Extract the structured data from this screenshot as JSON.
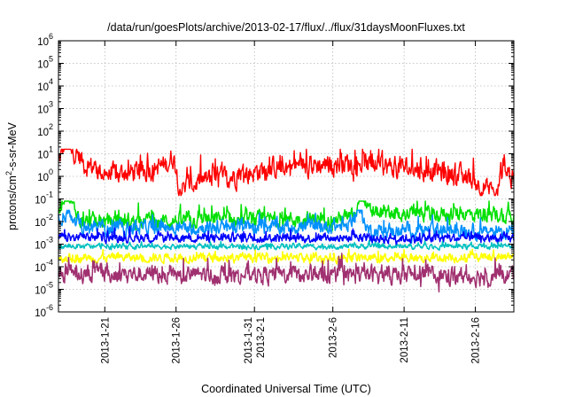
{
  "chart_data": {
    "type": "line",
    "title": "/data/run/goesPlots/archive/2013-02-17/flux/../flux/31daysMoonFluxes.txt",
    "xlabel": "Coordinated Universal Time (UTC)",
    "ylabel": "protons/cm²-s-sr-MeV",
    "yscale": "log",
    "ylim_exp": [
      -6,
      6
    ],
    "y_ticks": [
      {
        "base": "10",
        "exp": "-6"
      },
      {
        "base": "10",
        "exp": "-5"
      },
      {
        "base": "10",
        "exp": "-4"
      },
      {
        "base": "10",
        "exp": "-3"
      },
      {
        "base": "10",
        "exp": "-2"
      },
      {
        "base": "10",
        "exp": "-1"
      },
      {
        "base": "10",
        "exp": "0"
      },
      {
        "base": "10",
        "exp": "1"
      },
      {
        "base": "10",
        "exp": "2"
      },
      {
        "base": "10",
        "exp": "3"
      },
      {
        "base": "10",
        "exp": "4"
      },
      {
        "base": "10",
        "exp": "5"
      },
      {
        "base": "10",
        "exp": "6"
      }
    ],
    "xlim_days": [
      17.75,
      49.7
    ],
    "x_ticks": [
      {
        "lines": [
          "2013-1-21"
        ],
        "day": 21
      },
      {
        "lines": [
          "2013-1-26"
        ],
        "day": 26
      },
      {
        "lines": [
          "2013-1-31",
          "2013-2-1"
        ],
        "day": 31.5
      },
      {
        "lines": [
          "2013-2-6"
        ],
        "day": 37
      },
      {
        "lines": [
          "2013-2-11"
        ],
        "day": 42
      },
      {
        "lines": [
          "2013-2-16"
        ],
        "day": 47
      }
    ],
    "grid": true,
    "colors": {
      "red": "#ff0000",
      "green": "#00e000",
      "blue": "#0000ff",
      "lightblue": "#0090ff",
      "cyan": "#00c0c0",
      "yellow": "#ffff00",
      "purple": "#a03070"
    },
    "series": [
      {
        "color": "red",
        "log_min": -0.7,
        "log_max": 1.0,
        "log_mid": 0.3,
        "key_points": [
          [
            17.8,
            0.7
          ],
          [
            18.3,
            1.6
          ],
          [
            18.8,
            1.2
          ],
          [
            19.5,
            0.6
          ],
          [
            21.5,
            0.0
          ],
          [
            24.0,
            0.3
          ],
          [
            25.3,
            0.5
          ],
          [
            25.8,
            0.9
          ],
          [
            26.3,
            -0.5
          ],
          [
            28.0,
            -0.2
          ],
          [
            33.0,
            0.4
          ],
          [
            36.0,
            0.5
          ],
          [
            38.5,
            0.6
          ],
          [
            41.0,
            0.4
          ],
          [
            44.0,
            0.3
          ],
          [
            47.0,
            -0.2
          ],
          [
            48.5,
            -0.9
          ],
          [
            49.0,
            0.6
          ],
          [
            49.7,
            -0.3
          ]
        ]
      },
      {
        "color": "green",
        "log_min": -2.5,
        "log_max": -1.3,
        "log_mid": -2.0,
        "key_points": [
          [
            17.8,
            -1.4
          ],
          [
            18.3,
            -0.6
          ],
          [
            18.8,
            -1.4
          ],
          [
            19.5,
            -2.0
          ],
          [
            37.0,
            -1.9
          ],
          [
            38.5,
            -1.8
          ],
          [
            39.0,
            -0.5
          ],
          [
            39.5,
            -1.6
          ],
          [
            49.7,
            -1.7
          ]
        ]
      },
      {
        "color": "lightblue",
        "log_min": -2.8,
        "log_max": -1.7,
        "log_mid": -2.3,
        "key_points": [
          [
            17.8,
            -1.8
          ],
          [
            18.5,
            -1.6
          ],
          [
            19.5,
            -2.3
          ],
          [
            38.0,
            -2.2
          ],
          [
            38.8,
            -1.4
          ],
          [
            39.5,
            -2.4
          ],
          [
            49.7,
            -2.4
          ]
        ]
      },
      {
        "color": "blue",
        "log_min": -3.1,
        "log_max": -2.4,
        "log_mid": -2.75,
        "key_points": [
          [
            17.8,
            -2.7
          ],
          [
            49.7,
            -2.75
          ]
        ]
      },
      {
        "color": "cyan",
        "log_min": -3.3,
        "log_max": -2.9,
        "log_mid": -3.1,
        "key_points": [
          [
            17.8,
            -3.1
          ],
          [
            49.7,
            -3.1
          ]
        ]
      },
      {
        "color": "yellow",
        "log_min": -4.0,
        "log_max": -3.3,
        "log_mid": -3.6,
        "key_points": [
          [
            17.8,
            -3.6
          ],
          [
            49.7,
            -3.6
          ]
        ]
      },
      {
        "color": "purple",
        "log_min": -5.0,
        "log_max": -3.6,
        "log_mid": -4.35,
        "key_points": [
          [
            17.8,
            -4.3
          ],
          [
            49.7,
            -4.4
          ]
        ]
      }
    ]
  }
}
